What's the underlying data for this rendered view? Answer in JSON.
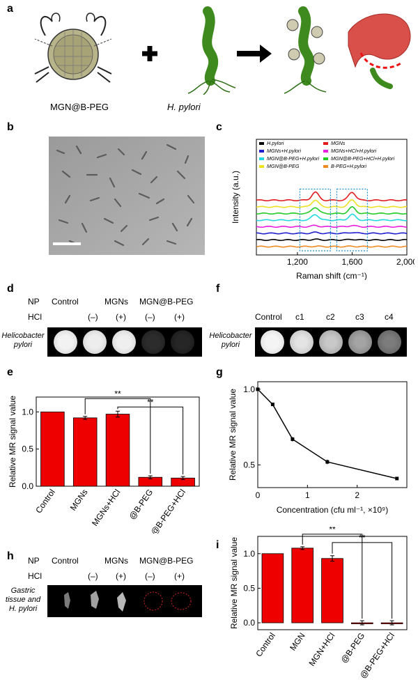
{
  "panel_labels": {
    "a": "a",
    "b": "b",
    "c": "c",
    "d": "d",
    "e": "e",
    "f": "f",
    "g": "g",
    "h": "h",
    "i": "i"
  },
  "panel_a": {
    "label_nanoparticle": "MGN@B-PEG",
    "label_bacteria": "H. pylori"
  },
  "panel_d": {
    "np_label": "NP",
    "hcl_label": "HCl",
    "row_label": "Helicobacter pylori",
    "groups": [
      "Control",
      "MGNs",
      "MGN@B-PEG"
    ],
    "hcl_marks": [
      "(–)",
      "(+)",
      "(–)",
      "(+)"
    ]
  },
  "panel_f": {
    "columns": [
      "Control",
      "c1",
      "c2",
      "c3",
      "c4"
    ],
    "row_label": "Helicobacter pylori"
  },
  "panel_h": {
    "np_label": "NP",
    "hcl_label": "HCl",
    "row_label": "Gastric tissue and H. pylori",
    "groups": [
      "Control",
      "MGNs",
      "MGN@B-PEG"
    ],
    "hcl_marks": [
      "(–)",
      "(+)",
      "(–)",
      "(+)"
    ]
  },
  "colors": {
    "bar": "#ee0000",
    "raman_box": "#1a8fd0"
  },
  "chart_data": [
    {
      "id": "c",
      "type": "line",
      "title": "",
      "xlabel": "Raman shift (cm⁻¹)",
      "ylabel": "Intensity (a.u.)",
      "xlim": [
        900,
        2000
      ],
      "xticks": [
        "1,200",
        "1,600",
        "2,000"
      ],
      "xtick_values": [
        1200,
        1600,
        2000
      ],
      "legend": [
        {
          "name": "H.pylori",
          "color": "#000000"
        },
        {
          "name": "MGNs",
          "color": "#e41a1c"
        },
        {
          "name": "MGNs+H.pylori",
          "color": "#1f1fd0"
        },
        {
          "name": "MGNs+HCl+H.pylori",
          "color": "#e81ee0"
        },
        {
          "name": "MGN@B-PEG+H.pylori",
          "color": "#22d8e0"
        },
        {
          "name": "MGN@B-PEG+HCl+H.pylori",
          "color": "#22cc22"
        },
        {
          "name": "MGN@B-PEG",
          "color": "#f0e020"
        },
        {
          "name": "B-PEG+H.pylori",
          "color": "#f08a20"
        }
      ],
      "series": [
        {
          "name": "MGNs",
          "offset": 7,
          "peak": 1.3
        },
        {
          "name": "MGN@B-PEG",
          "offset": 6,
          "peak": 1.1
        },
        {
          "name": "MGN@B-PEG+HCl+H.pylori",
          "offset": 5,
          "peak": 1.0
        },
        {
          "name": "MGN@B-PEG+H.pylori",
          "offset": 4,
          "peak": 0.9
        },
        {
          "name": "MGNs+HCl+H.pylori",
          "offset": 3,
          "peak": 0.2
        },
        {
          "name": "MGNs+H.pylori",
          "offset": 2,
          "peak": 0.15
        },
        {
          "name": "H.pylori",
          "offset": 1,
          "peak": 0.1
        },
        {
          "name": "B-PEG+H.pylori",
          "offset": 0,
          "peak": 0.05
        }
      ],
      "highlight_peaks": [
        1330,
        1600
      ]
    },
    {
      "id": "e",
      "type": "bar",
      "categories": [
        "Control",
        "MGNs",
        "MGNs+HCl",
        "@B-PEG",
        "@B-PEG+HCl"
      ],
      "values": [
        1.0,
        0.92,
        0.97,
        0.12,
        0.11
      ],
      "errors": [
        0.0,
        0.02,
        0.04,
        0.02,
        0.02
      ],
      "ylabel": "Relative MR signal value",
      "ylim": [
        0,
        1.2
      ],
      "yticks": [
        "0.0",
        "0.5",
        "1.0"
      ],
      "ytick_values": [
        0,
        0.5,
        1.0
      ],
      "significance": [
        {
          "from": 1,
          "to": 3,
          "text": "**"
        },
        {
          "from": 2,
          "to": 4,
          "text": "**"
        }
      ]
    },
    {
      "id": "g",
      "type": "line",
      "x": [
        0,
        0.3,
        0.7,
        1.4,
        2.8
      ],
      "y": [
        1.0,
        0.9,
        0.67,
        0.52,
        0.41
      ],
      "errors": [
        0,
        0.01,
        0.015,
        0.015,
        0.01
      ],
      "xlabel": "Concentration (cfu ml⁻¹, ×10⁹)",
      "ylabel": "Relative MR signal value",
      "xlim": [
        0,
        3
      ],
      "ylim": [
        0.35,
        1.05
      ],
      "xticks": [
        "0",
        "1",
        "2"
      ],
      "xtick_values": [
        0,
        1,
        2
      ],
      "yticks": [
        "0.5",
        "1.0"
      ],
      "ytick_values": [
        0.5,
        1.0
      ]
    },
    {
      "id": "i",
      "type": "bar",
      "categories": [
        "Control",
        "MGN",
        "MGN+HCl",
        "@B-PEG",
        "@B-PEG+HCl"
      ],
      "values": [
        1.0,
        1.08,
        0.93,
        0.0,
        0.0
      ],
      "errors": [
        0.0,
        0.02,
        0.04,
        0.03,
        0.03
      ],
      "ylabel": "Relative MR signal value",
      "ylim": [
        -0.1,
        1.25
      ],
      "yticks": [
        "0.0",
        "0.5",
        "1.0"
      ],
      "ytick_values": [
        0,
        0.5,
        1.0
      ],
      "significance": [
        {
          "from": 1,
          "to": 3,
          "text": "**"
        },
        {
          "from": 2,
          "to": 4,
          "text": "**"
        }
      ]
    }
  ]
}
